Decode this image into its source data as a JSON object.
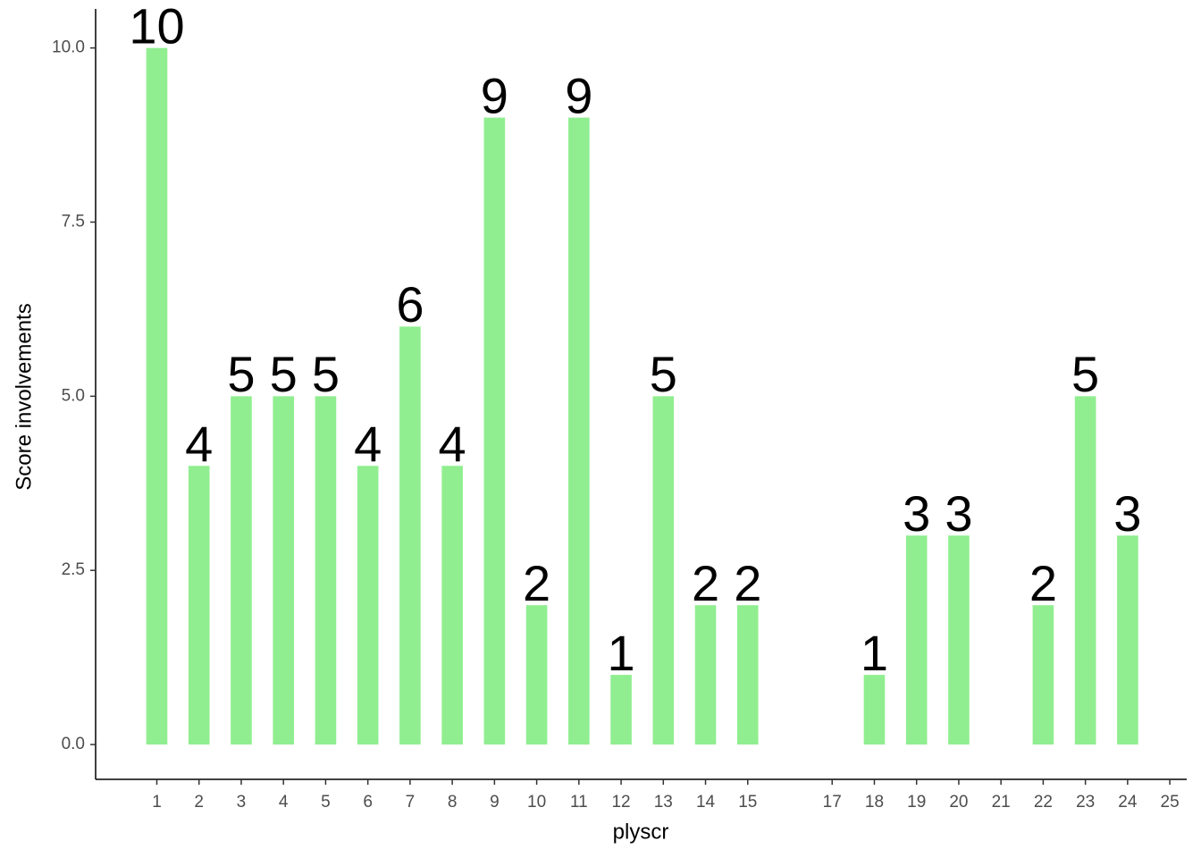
{
  "chart_data": {
    "type": "bar",
    "x": [
      1,
      2,
      3,
      4,
      5,
      6,
      7,
      8,
      9,
      10,
      11,
      12,
      13,
      14,
      15,
      18,
      19,
      20,
      22,
      23,
      24
    ],
    "values": [
      10,
      4,
      5,
      5,
      5,
      4,
      6,
      4,
      9,
      2,
      9,
      1,
      5,
      2,
      2,
      1,
      3,
      3,
      2,
      5,
      3
    ],
    "color": "#90ee90",
    "x_label": "plyscr",
    "y_label": "Score involvements",
    "xlim": [
      -0.45,
      25.4
    ],
    "xticks": [
      1,
      2,
      3,
      4,
      5,
      6,
      7,
      8,
      9,
      10,
      11,
      12,
      13,
      14,
      15,
      17,
      18,
      19,
      20,
      21,
      22,
      23,
      24,
      25
    ],
    "ylim": [
      -0.5,
      10.56
    ],
    "yticks": [
      {
        "value": 0,
        "label": "0.0"
      },
      {
        "value": 2.5,
        "label": "2.5"
      },
      {
        "value": 5,
        "label": "5.0"
      },
      {
        "value": 7.5,
        "label": "7.5"
      },
      {
        "value": 10,
        "label": "10.0"
      }
    ],
    "grid": false
  }
}
